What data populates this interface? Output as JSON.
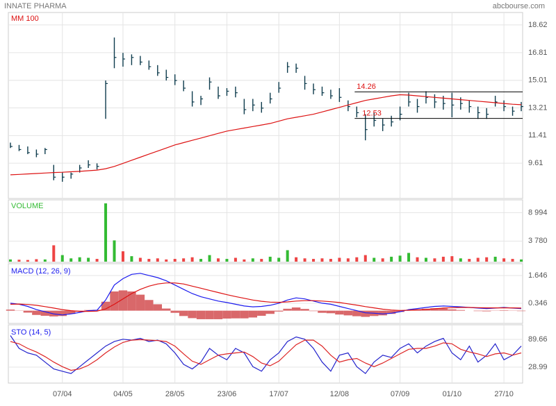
{
  "header": {
    "title": "INNATE PHARMA",
    "source": "abcbourse.com"
  },
  "chart_data": [
    {
      "type": "ohlc",
      "color": "#0d3b4c",
      "categories": [
        null,
        null,
        null,
        null,
        null,
        null,
        "07/04",
        null,
        null,
        null,
        null,
        null,
        null,
        "04/05",
        null,
        null,
        null,
        null,
        null,
        "28/05",
        null,
        null,
        null,
        null,
        null,
        "23/06",
        null,
        null,
        null,
        null,
        null,
        "17/07",
        null,
        null,
        null,
        null,
        null,
        null,
        "12/08",
        null,
        null,
        null,
        null,
        null,
        null,
        "07/09",
        null,
        null,
        null,
        null,
        null,
        "01/10",
        null,
        null,
        null,
        null,
        null,
        "27/10",
        null,
        null
      ],
      "high": [
        10.95,
        10.8,
        10.7,
        10.5,
        10.6,
        9.5,
        9.0,
        9.0,
        9.5,
        9.8,
        9.6,
        15.0,
        17.8,
        16.8,
        16.7,
        16.6,
        16.3,
        16.0,
        15.7,
        15.4,
        15.0,
        14.3,
        14.0,
        15.2,
        14.6,
        14.5,
        14.6,
        13.8,
        13.8,
        13.6,
        14.2,
        14.9,
        16.2,
        16.1,
        15.3,
        14.8,
        14.6,
        14.4,
        14.5,
        13.7,
        13.3,
        12.8,
        12.9,
        12.5,
        12.7,
        13.3,
        14.2,
        13.8,
        14.3,
        14.1,
        14.0,
        14.2,
        13.9,
        13.7,
        13.3,
        13.2,
        14.0,
        13.7,
        13.3,
        13.6
      ],
      "low": [
        10.6,
        10.4,
        10.2,
        10.0,
        10.2,
        8.5,
        8.4,
        8.6,
        9.0,
        9.3,
        9.2,
        12.5,
        15.8,
        15.9,
        16.0,
        16.0,
        15.7,
        15.3,
        15.0,
        14.7,
        14.3,
        13.3,
        13.4,
        14.4,
        13.8,
        14.0,
        13.9,
        12.8,
        13.0,
        12.9,
        13.5,
        14.2,
        15.5,
        15.5,
        14.4,
        14.1,
        14.0,
        13.8,
        13.6,
        13.0,
        12.6,
        11.1,
        12.0,
        11.7,
        12.0,
        12.4,
        13.3,
        12.9,
        13.5,
        13.2,
        13.1,
        12.6,
        13.1,
        12.9,
        12.5,
        12.5,
        13.3,
        13.0,
        12.7,
        13.0
      ],
      "close": [
        10.7,
        10.5,
        10.3,
        10.2,
        10.5,
        8.7,
        8.7,
        8.9,
        9.3,
        9.5,
        9.4,
        14.8,
        16.5,
        16.4,
        16.5,
        16.2,
        15.9,
        15.5,
        15.2,
        15.0,
        14.5,
        13.6,
        13.8,
        14.9,
        14.0,
        14.3,
        14.2,
        13.1,
        13.4,
        13.2,
        13.8,
        14.5,
        15.9,
        15.8,
        14.8,
        14.4,
        14.2,
        14.0,
        13.9,
        13.3,
        12.9,
        11.8,
        12.4,
        12.1,
        12.3,
        12.8,
        13.6,
        13.3,
        13.9,
        13.6,
        13.5,
        13.4,
        13.5,
        13.3,
        12.9,
        12.8,
        13.6,
        13.3,
        13.0,
        13.3
      ],
      "series": [
        {
          "name": "MM 100",
          "color": "#dd1111",
          "values": [
            8.85,
            8.88,
            8.91,
            8.94,
            8.97,
            9.0,
            9.02,
            9.05,
            9.08,
            9.12,
            9.16,
            9.25,
            9.4,
            9.6,
            9.8,
            10.0,
            10.2,
            10.4,
            10.6,
            10.8,
            10.95,
            11.1,
            11.25,
            11.4,
            11.55,
            11.7,
            11.8,
            11.9,
            12.0,
            12.1,
            12.2,
            12.35,
            12.5,
            12.6,
            12.7,
            12.8,
            12.95,
            13.1,
            13.25,
            13.4,
            13.55,
            13.7,
            13.8,
            13.9,
            14.0,
            14.07,
            14.05,
            14.0,
            13.95,
            13.9,
            13.85,
            13.8,
            13.75,
            13.7,
            13.65,
            13.6,
            13.55,
            13.5,
            13.45,
            13.42
          ]
        }
      ],
      "levels": [
        14.26,
        12.53
      ],
      "level_color": "#000000",
      "level_label_color": "#dd1111",
      "ylim": [
        7.31,
        19.43
      ],
      "yticks": [
        18.62,
        16.81,
        15.01,
        13.21,
        11.41,
        9.61
      ],
      "grid": true
    },
    {
      "type": "bar",
      "up_color": "#33bb33",
      "down_color": "#ee4444",
      "series": [
        {
          "name": "VOLUME",
          "color": "#33bb33",
          "values": [
            400,
            350,
            300,
            450,
            400,
            3000,
            1200,
            600,
            800,
            700,
            500,
            10700,
            3900,
            1900,
            1000,
            700,
            500,
            600,
            400,
            500,
            600,
            800,
            500,
            1200,
            600,
            500,
            700,
            400,
            600,
            500,
            900,
            700,
            2100,
            800,
            600,
            500,
            600,
            500,
            700,
            600,
            800,
            1200,
            700,
            600,
            900,
            1100,
            1600,
            800,
            700,
            600,
            900,
            1000,
            600,
            500,
            700,
            800,
            900,
            600,
            500,
            400
          ]
        }
      ],
      "ylim": [
        -130,
        11340
      ],
      "yticks": [
        {
          "value": 8994,
          "label": "8 994"
        },
        {
          "value": 3780,
          "label": "3 780"
        }
      ],
      "grid": true
    },
    {
      "type": "macd",
      "title": "MACD (12, 26, 9)",
      "title_color": "#1a1aee",
      "lines": [
        {
          "color": "#1a1aee",
          "values": [
            0.35,
            0.3,
            0.2,
            0.05,
            -0.05,
            -0.15,
            -0.2,
            -0.15,
            -0.08,
            0.0,
            0.02,
            0.5,
            1.2,
            1.5,
            1.7,
            1.75,
            1.65,
            1.55,
            1.4,
            1.2,
            1.0,
            0.8,
            0.65,
            0.55,
            0.45,
            0.38,
            0.3,
            0.22,
            0.18,
            0.2,
            0.25,
            0.35,
            0.5,
            0.6,
            0.55,
            0.45,
            0.35,
            0.3,
            0.2,
            0.1,
            0.0,
            -0.1,
            -0.12,
            -0.15,
            -0.12,
            -0.05,
            0.05,
            0.1,
            0.15,
            0.2,
            0.22,
            0.2,
            0.18,
            0.15,
            0.12,
            0.1,
            0.12,
            0.15,
            0.12,
            0.1
          ]
        },
        {
          "color": "#dd1111",
          "values": [
            0.3,
            0.31,
            0.29,
            0.25,
            0.19,
            0.12,
            0.05,
            0.0,
            -0.03,
            -0.03,
            -0.02,
            0.08,
            0.3,
            0.55,
            0.8,
            1.0,
            1.15,
            1.25,
            1.3,
            1.3,
            1.25,
            1.15,
            1.05,
            0.95,
            0.85,
            0.75,
            0.66,
            0.58,
            0.5,
            0.44,
            0.4,
            0.39,
            0.41,
            0.45,
            0.47,
            0.47,
            0.45,
            0.42,
            0.38,
            0.32,
            0.26,
            0.19,
            0.13,
            0.07,
            0.03,
            0.01,
            0.02,
            0.04,
            0.06,
            0.09,
            0.12,
            0.14,
            0.15,
            0.15,
            0.14,
            0.13,
            0.13,
            0.13,
            0.13,
            0.12
          ]
        }
      ],
      "histogram": {
        "color": "#d9686a",
        "values": [
          0.05,
          -0.01,
          -0.09,
          -0.2,
          -0.24,
          -0.27,
          -0.25,
          -0.15,
          -0.05,
          0.03,
          0.04,
          0.42,
          0.9,
          0.95,
          0.9,
          0.75,
          0.5,
          0.3,
          0.1,
          -0.1,
          -0.25,
          -0.35,
          -0.4,
          -0.4,
          -0.4,
          -0.37,
          -0.36,
          -0.36,
          -0.32,
          -0.24,
          -0.15,
          -0.04,
          0.09,
          0.15,
          0.08,
          -0.02,
          -0.1,
          -0.12,
          -0.18,
          -0.22,
          -0.26,
          -0.29,
          -0.25,
          -0.22,
          -0.15,
          -0.06,
          0.03,
          0.06,
          0.09,
          0.11,
          0.1,
          0.06,
          0.03,
          0.0,
          -0.02,
          -0.03,
          -0.01,
          0.02,
          -0.01,
          -0.02
        ]
      },
      "ylim": [
        -0.597,
        2.199
      ],
      "yticks": [
        1.646,
        0.346
      ],
      "grid": true
    },
    {
      "type": "sto",
      "title": "STO (14, 5)",
      "title_color": "#1a1aee",
      "lines": [
        {
          "color": "#2222cc",
          "values": [
            98,
            70,
            60,
            55,
            40,
            25,
            20,
            15,
            30,
            45,
            60,
            75,
            85,
            90,
            88,
            92,
            85,
            88,
            80,
            60,
            35,
            25,
            40,
            70,
            55,
            45,
            70,
            60,
            30,
            20,
            45,
            60,
            85,
            95,
            90,
            70,
            40,
            20,
            55,
            60,
            30,
            15,
            40,
            55,
            50,
            70,
            80,
            60,
            75,
            85,
            92,
            60,
            45,
            75,
            40,
            55,
            80,
            45,
            55,
            75
          ]
        },
        {
          "color": "#dd2222",
          "values": [
            85,
            80,
            70,
            62,
            52,
            40,
            30,
            22,
            25,
            33,
            45,
            60,
            73,
            83,
            88,
            89,
            88,
            87,
            85,
            75,
            58,
            42,
            35,
            45,
            55,
            58,
            60,
            62,
            52,
            38,
            32,
            42,
            60,
            78,
            88,
            88,
            75,
            55,
            40,
            45,
            48,
            38,
            30,
            38,
            48,
            58,
            68,
            70,
            70,
            75,
            82,
            80,
            68,
            62,
            58,
            52,
            58,
            60,
            55,
            60
          ]
        }
      ],
      "ylim": [
        -5.9,
        121.5
      ],
      "yticks": [
        89.66,
        28.99
      ],
      "grid": true
    }
  ]
}
